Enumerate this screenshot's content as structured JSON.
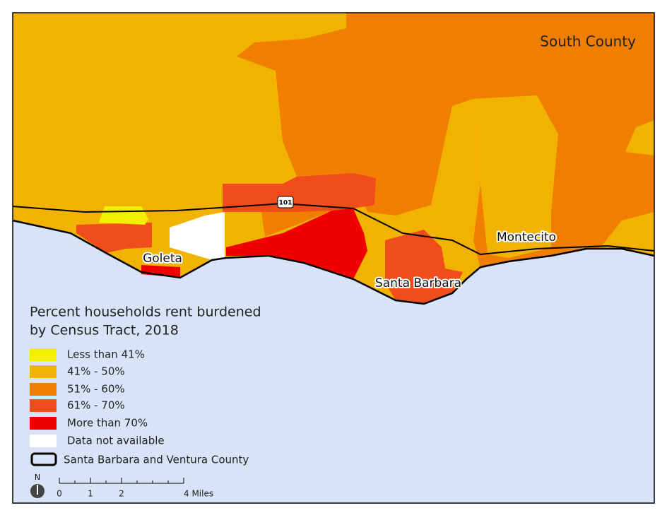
{
  "map": {
    "region_label": "South County",
    "places": [
      {
        "label": "Goleta"
      },
      {
        "label": "Santa Barbara"
      },
      {
        "label": "Montecito"
      }
    ],
    "highway": "101",
    "legend": {
      "title": [
        "Percent households rent burdened",
        "by Census Tract, 2018"
      ],
      "items": [
        {
          "label": "Less than 41%",
          "color": "#f2ef00"
        },
        {
          "label": "41% - 50%",
          "color": "#f2b300"
        },
        {
          "label": "51% - 60%",
          "color": "#f07f00"
        },
        {
          "label": "61% - 70%",
          "color": "#f04d1c"
        },
        {
          "label": "More than 70%",
          "color": "#f20000"
        },
        {
          "label": "Data not available",
          "color": "#ffffff"
        }
      ],
      "boundary_label": "Santa Barbara and Ventura County"
    },
    "north": "N",
    "scale": {
      "ticks": [
        "0",
        "1",
        "2",
        "4 Miles"
      ]
    }
  }
}
